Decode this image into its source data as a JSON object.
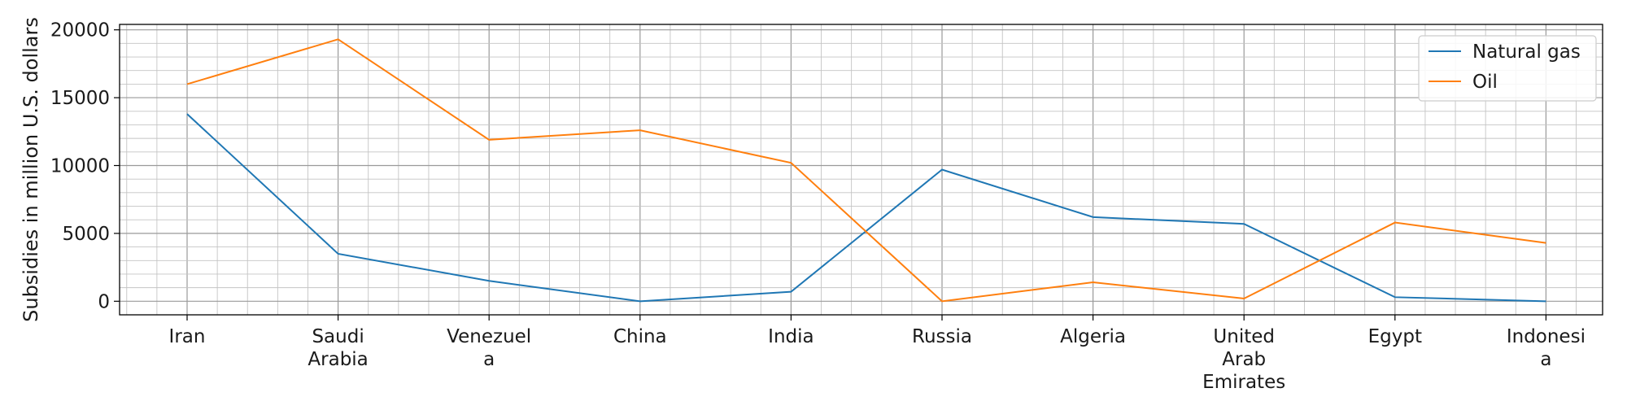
{
  "chart_data": {
    "type": "line",
    "title": "",
    "xlabel": "",
    "ylabel": "Subsidies in million U.S. dollars",
    "categories": [
      [
        "Iran"
      ],
      [
        "Saudi",
        "Arabia"
      ],
      [
        "Venezuel",
        "a"
      ],
      [
        "China"
      ],
      [
        "India"
      ],
      [
        "Russia"
      ],
      [
        "Algeria"
      ],
      [
        "United",
        "Arab",
        "Emirates"
      ],
      [
        "Egypt"
      ],
      [
        "Indonesi",
        "a"
      ]
    ],
    "series": [
      {
        "name": "Natural gas",
        "color": "#1f77b4",
        "values": [
          13800,
          3500,
          1500,
          0,
          700,
          9700,
          6200,
          5700,
          300,
          0
        ]
      },
      {
        "name": "Oil",
        "color": "#ff7f0e",
        "values": [
          16000,
          19300,
          11900,
          12600,
          10200,
          0,
          1400,
          200,
          5800,
          4300
        ]
      }
    ],
    "ylim": [
      -1000,
      20400
    ],
    "yticks": [
      0,
      5000,
      10000,
      15000,
      20000
    ],
    "grid": true,
    "legend_position": "top-right"
  }
}
